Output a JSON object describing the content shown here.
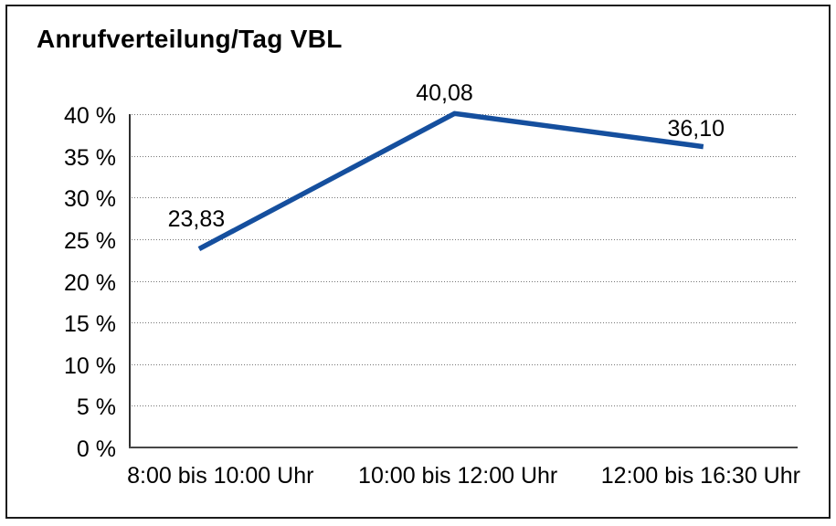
{
  "window": {
    "background": "#ffffff",
    "frame_border_color": "#1b1b1b"
  },
  "chart_data": {
    "type": "line",
    "title": "Anrufverteilung/Tag VBL",
    "categories": [
      "8:00 bis 10:00 Uhr",
      "10:00 bis 12:00 Uhr",
      "12:00 bis 16:30 Uhr"
    ],
    "values": [
      23.83,
      40.08,
      36.1
    ],
    "value_labels": [
      "23,83",
      "40,08",
      "36,10"
    ],
    "y_ticks": [
      0,
      5,
      10,
      15,
      20,
      25,
      30,
      35,
      40
    ],
    "y_tick_labels": [
      "0 %",
      "5 %",
      "10 %",
      "15 %",
      "20 %",
      "25 %",
      "30 %",
      "35 %",
      "40 %"
    ],
    "ylim": [
      0,
      40
    ],
    "xlabel": "",
    "ylabel": "",
    "grid": "horizontal-dotted",
    "legend": "none",
    "line_color": "#154f9e",
    "text_color": "#000000"
  }
}
